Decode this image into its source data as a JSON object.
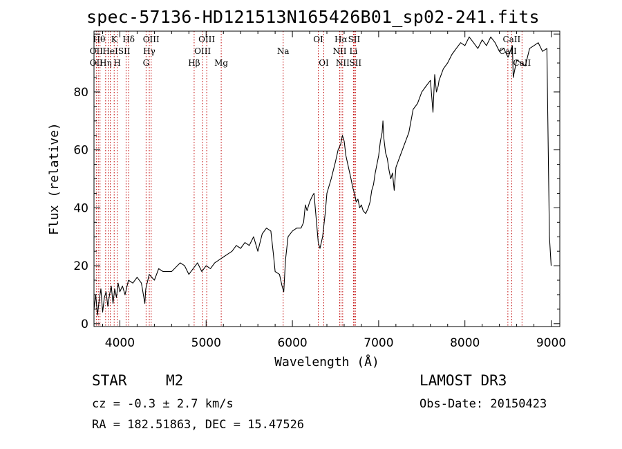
{
  "chart_data": {
    "type": "line",
    "title": "spec-57136-HD121513N165426B01_sp02-241.fits",
    "xlabel": "Wavelength (Å)",
    "ylabel": "Flux (relative)",
    "xlim": [
      3700,
      9100
    ],
    "ylim": [
      -1,
      101
    ],
    "xticks": [
      4000,
      5000,
      6000,
      7000,
      8000,
      9000
    ],
    "yticks": [
      0,
      20,
      40,
      60,
      80
    ],
    "grid": false,
    "series": [
      {
        "name": "flux",
        "x": [
          3700,
          3720,
          3740,
          3760,
          3780,
          3800,
          3820,
          3840,
          3860,
          3880,
          3900,
          3920,
          3940,
          3960,
          3980,
          4000,
          4030,
          4060,
          4100,
          4150,
          4200,
          4250,
          4290,
          4300,
          4340,
          4400,
          4450,
          4500,
          4600,
          4700,
          4750,
          4800,
          4850,
          4900,
          4950,
          5000,
          5050,
          5100,
          5150,
          5200,
          5250,
          5300,
          5350,
          5400,
          5450,
          5500,
          5550,
          5600,
          5650,
          5700,
          5750,
          5780,
          5800,
          5850,
          5880,
          5900,
          5920,
          5950,
          6000,
          6050,
          6100,
          6130,
          6150,
          6170,
          6200,
          6230,
          6250,
          6280,
          6300,
          6320,
          6350,
          6380,
          6400,
          6450,
          6500,
          6530,
          6560,
          6580,
          6600,
          6620,
          6650,
          6680,
          6700,
          6720,
          6740,
          6760,
          6780,
          6800,
          6820,
          6850,
          6880,
          6900,
          6920,
          6940,
          6960,
          6980,
          7000,
          7020,
          7040,
          7050,
          7060,
          7080,
          7100,
          7120,
          7140,
          7160,
          7180,
          7200,
          7250,
          7300,
          7350,
          7400,
          7450,
          7500,
          7550,
          7600,
          7630,
          7650,
          7670,
          7690,
          7700,
          7750,
          7800,
          7850,
          7900,
          7950,
          8000,
          8050,
          8100,
          8150,
          8200,
          8250,
          8300,
          8350,
          8400,
          8450,
          8500,
          8550,
          8560,
          8600,
          8650,
          8700,
          8750,
          8800,
          8850,
          8900,
          8950,
          8980,
          9000
        ],
        "y": [
          5,
          10,
          3,
          8,
          12,
          4,
          9,
          11,
          6,
          10,
          13,
          7,
          12,
          9,
          14,
          11,
          13,
          10,
          15,
          14,
          16,
          14,
          7,
          12,
          17,
          15,
          19,
          18,
          18,
          21,
          20,
          17,
          19,
          21,
          18,
          20,
          19,
          21,
          22,
          23,
          24,
          25,
          27,
          26,
          28,
          27,
          30,
          25,
          31,
          33,
          32,
          24,
          18,
          17,
          13,
          11,
          22,
          30,
          32,
          33,
          33,
          35,
          41,
          39,
          42,
          44,
          45,
          35,
          28,
          26,
          30,
          38,
          45,
          50,
          56,
          60,
          62,
          65,
          63,
          58,
          54,
          50,
          47,
          45,
          42,
          43,
          40,
          41,
          39,
          38,
          40,
          42,
          46,
          48,
          52,
          55,
          58,
          63,
          66,
          70,
          64,
          59,
          57,
          53,
          50,
          52,
          46,
          54,
          58,
          62,
          66,
          74,
          76,
          80,
          82,
          84,
          73,
          86,
          80,
          82,
          84,
          88,
          90,
          93,
          95,
          97,
          96,
          99,
          97,
          95,
          98,
          96,
          99,
          97,
          94,
          95,
          92,
          96,
          85,
          91,
          90,
          89,
          95,
          96,
          97,
          94,
          95,
          30,
          20
        ]
      }
    ],
    "lines": [
      {
        "x": 3727,
        "name": "OII"
      },
      {
        "x": 3750,
        "name": "Hθ"
      },
      {
        "x": 3770,
        "name": "Hη"
      },
      {
        "x": 3835,
        "name": "Hη"
      },
      {
        "x": 3869,
        "name": "He"
      },
      {
        "x": 3889,
        "name": "HeI"
      },
      {
        "x": 3934,
        "name": "K"
      },
      {
        "x": 3969,
        "name": "H"
      },
      {
        "x": 4072,
        "name": "SII"
      },
      {
        "x": 4102,
        "name": "Hδ"
      },
      {
        "x": 4304,
        "name": "G"
      },
      {
        "x": 4341,
        "name": "Hγ"
      },
      {
        "x": 4363,
        "name": "OIII"
      },
      {
        "x": 4861,
        "name": "Hβ"
      },
      {
        "x": 4959,
        "name": "OIII"
      },
      {
        "x": 5007,
        "name": "OIII"
      },
      {
        "x": 5175,
        "name": "Mg"
      },
      {
        "x": 5893,
        "name": "Na"
      },
      {
        "x": 6300,
        "name": "OI"
      },
      {
        "x": 6364,
        "name": "OI"
      },
      {
        "x": 6548,
        "name": "NII"
      },
      {
        "x": 6563,
        "name": "Hα"
      },
      {
        "x": 6583,
        "name": "NII"
      },
      {
        "x": 6708,
        "name": "Li"
      },
      {
        "x": 6716,
        "name": "SII"
      },
      {
        "x": 6731,
        "name": "SII"
      },
      {
        "x": 8498,
        "name": "CaII"
      },
      {
        "x": 8542,
        "name": "CaII"
      },
      {
        "x": 8662,
        "name": "CaII"
      }
    ],
    "line_labels": [
      {
        "text": "Hθ",
        "x": 3760,
        "row": 1
      },
      {
        "text": "OII",
        "x": 3727,
        "row": 2
      },
      {
        "text": "OII",
        "x": 3727,
        "row": 3
      },
      {
        "text": "K",
        "x": 3934,
        "row": 1
      },
      {
        "text": "HeI",
        "x": 3889,
        "row": 2
      },
      {
        "text": "Hη",
        "x": 3835,
        "row": 3
      },
      {
        "text": "Hδ",
        "x": 4102,
        "row": 1
      },
      {
        "text": "SII",
        "x": 4050,
        "row": 2
      },
      {
        "text": "H",
        "x": 3969,
        "row": 3
      },
      {
        "text": "OIII",
        "x": 4363,
        "row": 1
      },
      {
        "text": "Hγ",
        "x": 4341,
        "row": 2
      },
      {
        "text": "G",
        "x": 4304,
        "row": 3
      },
      {
        "text": "Hβ",
        "x": 4861,
        "row": 3
      },
      {
        "text": "OIII",
        "x": 5007,
        "row": 1
      },
      {
        "text": "OIII",
        "x": 4959,
        "row": 2
      },
      {
        "text": "Mg",
        "x": 5175,
        "row": 3
      },
      {
        "text": "Na",
        "x": 5893,
        "row": 2
      },
      {
        "text": "OI",
        "x": 6300,
        "row": 1
      },
      {
        "text": "OI",
        "x": 6364,
        "row": 3
      },
      {
        "text": "Hα",
        "x": 6563,
        "row": 1
      },
      {
        "text": "SII",
        "x": 6716,
        "row": 1
      },
      {
        "text": "NII",
        "x": 6548,
        "row": 2
      },
      {
        "text": "Li",
        "x": 6708,
        "row": 2
      },
      {
        "text": "NII",
        "x": 6583,
        "row": 3
      },
      {
        "text": "SII",
        "x": 6731,
        "row": 3
      },
      {
        "text": "CaII",
        "x": 8542,
        "row": 1
      },
      {
        "text": "CaII",
        "x": 8498,
        "row": 2
      },
      {
        "text": "CaII",
        "x": 8662,
        "row": 3
      }
    ]
  },
  "info": {
    "object_class": "STAR",
    "subclass": "M2",
    "survey": "LAMOST DR3",
    "redshift": "cz = -0.3 ± 2.7 km/s",
    "obs_date": "Obs-Date: 20150423",
    "coords": "RA = 182.51863, DEC =  15.47526"
  },
  "colors": {
    "spectrum": "#000000",
    "line_marker": "#c00000",
    "axis": "#000000",
    "background": "#ffffff"
  }
}
